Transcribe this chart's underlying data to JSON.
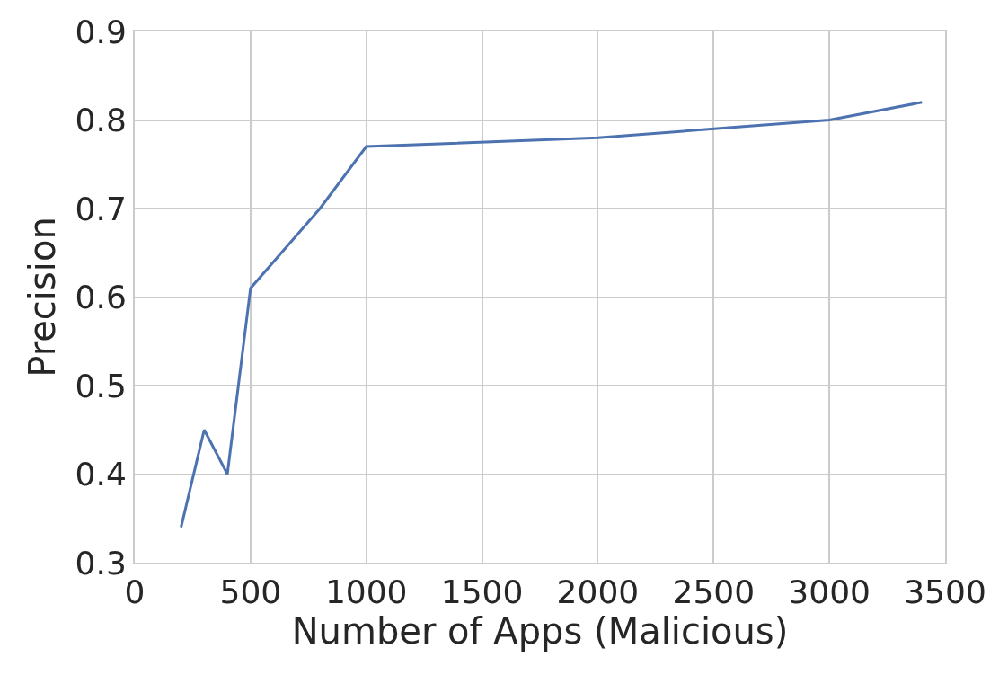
{
  "chart_data": {
    "type": "line",
    "xlabel": "Number of Apps (Malicious)",
    "ylabel": "Precision",
    "x": [
      200,
      300,
      400,
      500,
      800,
      1000,
      2000,
      3000,
      3400
    ],
    "series": [
      {
        "color": "#4c72b0",
        "values": [
          0.34,
          0.45,
          0.4,
          0.61,
          0.7,
          0.77,
          0.78,
          0.8,
          0.82
        ]
      }
    ],
    "xlim": [
      0,
      3500
    ],
    "xticks": [
      0,
      500,
      1000,
      1500,
      2000,
      2500,
      3000,
      3500
    ],
    "ylim": [
      0.3,
      0.9
    ],
    "yticks": [
      0.3,
      0.4,
      0.5,
      0.6,
      0.7,
      0.8,
      0.9
    ],
    "grid": true,
    "marker": "none",
    "line_style": "solid"
  }
}
